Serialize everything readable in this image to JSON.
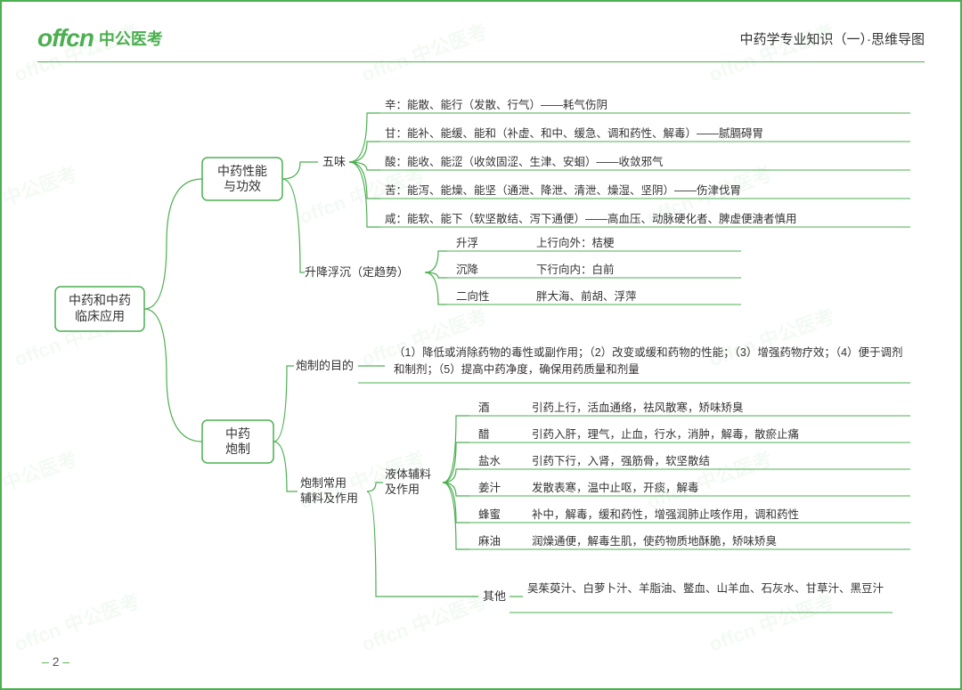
{
  "header": {
    "logo_main": "offcn",
    "logo_sub": "中公医考",
    "title": "中药学专业知识（一）·思维导图"
  },
  "page_number": "2",
  "colors": {
    "accent": "#4caf50",
    "text": "#333333",
    "bg": "#ffffff"
  },
  "mindmap": {
    "root": {
      "line1": "中药和中药",
      "line2": "临床应用"
    },
    "b1": {
      "box": {
        "line1": "中药性能",
        "line2": "与功效"
      },
      "sub1_label": "五味",
      "sub1_leaves": [
        "辛：能散、能行（发散、行气）——耗气伤阴",
        "甘：能补、能缓、能和（补虚、和中、缓急、调和药性、解毒）——腻膈碍胃",
        "酸：能收、能涩（收敛固涩、生津、安蛔）——收敛邪气",
        "苦：能泻、能燥、能坚（通泄、降泄、清泄、燥湿、坚阴）——伤津伐胃",
        "咸：能软、能下（软坚散结、泻下通便）——高血压、动脉硬化者、脾虚便溏者慎用"
      ],
      "sub2_label": "升降浮沉（定趋势）",
      "sub2_leaves": [
        {
          "k": "升浮",
          "v": "上行向外：桔梗"
        },
        {
          "k": "沉降",
          "v": "下行向内：白前"
        },
        {
          "k": "二向性",
          "v": "胖大海、前胡、浮萍"
        }
      ]
    },
    "b2": {
      "box": {
        "line1": "中药",
        "line2": "炮制"
      },
      "sub1_label": "炮制的目的",
      "sub1_text": "（1）降低或消除药物的毒性或副作用；（2）改变或缓和药物的性能；（3）增强药物疗效；（4）便于调剂和制剂；（5）提高中药净度，确保用药质量和剂量",
      "sub2_label1": "炮制常用",
      "sub2_label2": "辅料及作用",
      "sub2a_label1": "液体辅料",
      "sub2a_label2": "及作用",
      "sub2a_leaves": [
        {
          "k": "酒",
          "v": "引药上行，活血通络，祛风散寒，矫味矫臭"
        },
        {
          "k": "醋",
          "v": "引药入肝，理气，止血，行水，消肿，解毒，散瘀止痛"
        },
        {
          "k": "盐水",
          "v": "引药下行，入肾，强筋骨，软坚散结"
        },
        {
          "k": "姜汁",
          "v": "发散表寒，温中止呕，开痰，解毒"
        },
        {
          "k": "蜂蜜",
          "v": "补中，解毒，缓和药性，增强润肺止咳作用，调和药性"
        },
        {
          "k": "麻油",
          "v": "润燥通便，解毒生肌，使药物质地酥脆，矫味矫臭"
        }
      ],
      "sub2b_label": "其他",
      "sub2b_text": "吴茱萸汁、白萝卜汁、羊脂油、鳖血、山羊血、石灰水、甘草汁、黑豆汁"
    }
  }
}
